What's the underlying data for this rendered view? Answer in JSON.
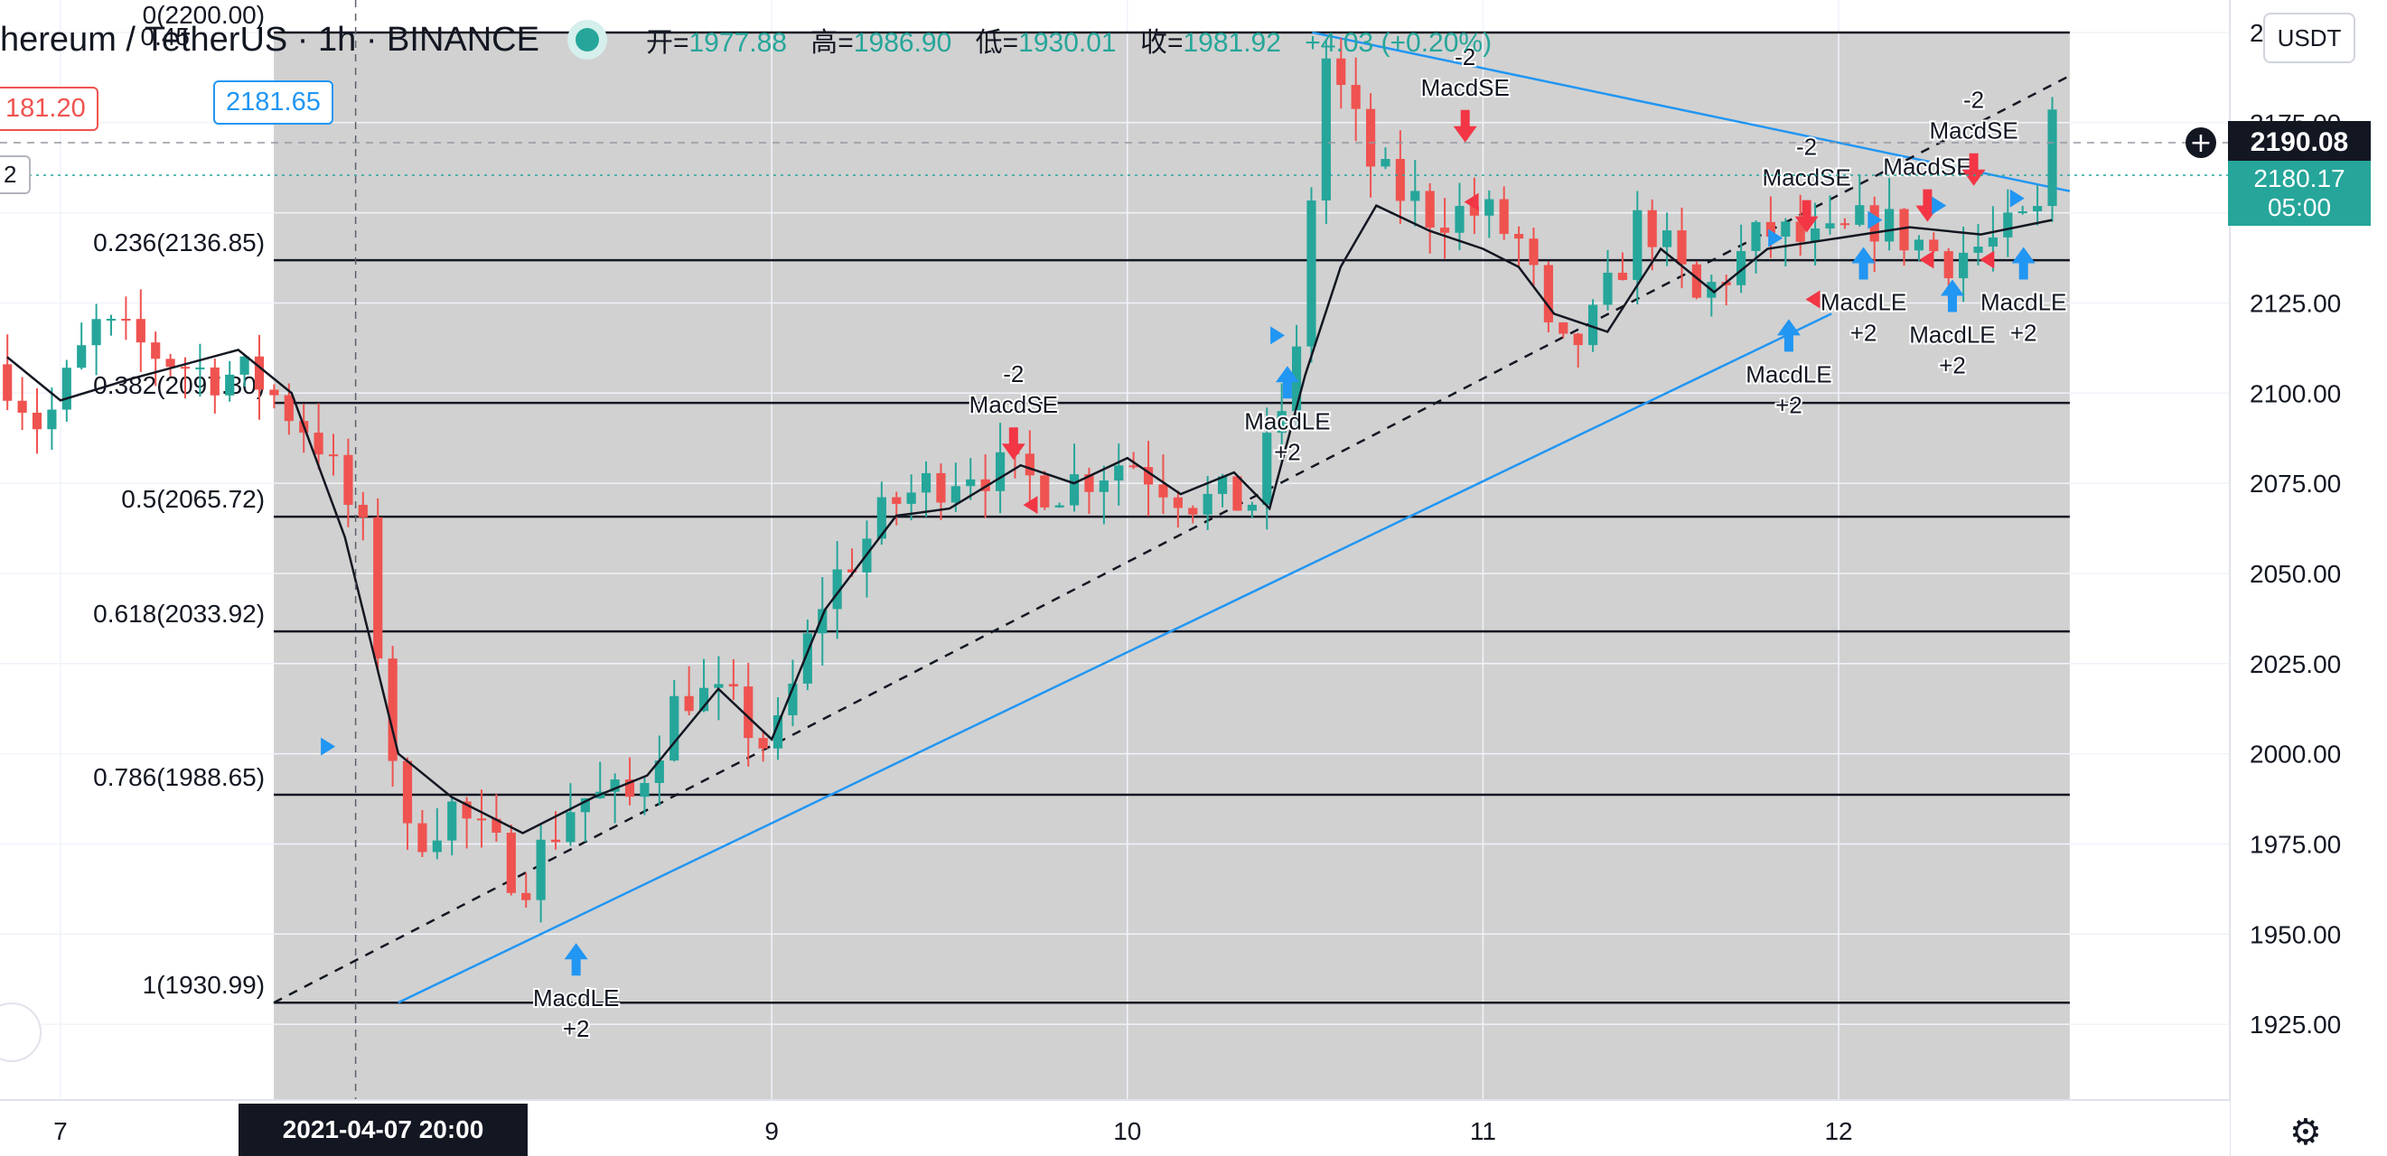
{
  "header": {
    "symbol": "hereum / TetherUS · 1h · BINANCE",
    "ohlc": [
      {
        "label": "开=",
        "value": "1977.88"
      },
      {
        "label": "高=",
        "value": "1986.90"
      },
      {
        "label": "低=",
        "value": "1930.01"
      },
      {
        "label": "收=",
        "value": "1981.92"
      },
      {
        "label": "",
        "value": "+4.03 (+0.20%)"
      }
    ]
  },
  "price_badges": {
    "left_red": "181.20",
    "left_blue": "2181.65",
    "left_small": "2"
  },
  "currency_button": "USDT",
  "crosshair_price": "2190.08",
  "last_price": {
    "price": "2180.17",
    "countdown": "05:00"
  },
  "time_badge": "2021-04-07   20:00",
  "colors": {
    "up": "#26a69a",
    "down": "#ef5350",
    "signal": "#2196f3",
    "short_arrow": "#f23645",
    "zone": "#d1d1d1"
  },
  "chart_data": {
    "type": "candlestick",
    "ylim": [
      1904,
      2209
    ],
    "yticks": [
      "2200.00",
      "2175.00",
      "2150.00",
      "2125.00",
      "2100.00",
      "2075.00",
      "2050.00",
      "2025.00",
      "2000.00",
      "1975.00",
      "1950.00",
      "1925.00"
    ],
    "ytick_values": [
      2200,
      2175,
      2150,
      2125,
      2100,
      2075,
      2050,
      2025,
      2000,
      1975,
      1950,
      1925
    ],
    "xticks": [
      {
        "label": "7",
        "day": 7.0
      },
      {
        "label": "9",
        "day": 9.0
      },
      {
        "label": "10",
        "day": 10.0
      },
      {
        "label": "11",
        "day": 11.0
      },
      {
        "label": "12",
        "day": 12.0
      }
    ],
    "xlim_days": [
      6.83,
      13.1
    ],
    "zone_days": [
      7.6,
      12.65
    ],
    "fib": [
      {
        "label": "0(2200.00)",
        "value": 2200.0
      },
      {
        "label": "0.236(2136.85)",
        "value": 2136.85
      },
      {
        "label": "0.382(2097.30)",
        "value": 2097.3
      },
      {
        "label": "0.5(2065.72)",
        "value": 2065.72
      },
      {
        "label": "0.618(2033.92)",
        "value": 2033.92
      },
      {
        "label": "0.786(1988.65)",
        "value": 1988.65
      },
      {
        "label": "1(1930.99)",
        "value": 1930.99
      }
    ],
    "fib_extra_label": "0.45",
    "trendlines": [
      {
        "style": "solid",
        "color": "#2196f3",
        "points": [
          [
            7.95,
            1931
          ],
          [
            11.98,
            2122
          ]
        ]
      },
      {
        "style": "solid",
        "color": "#2196f3",
        "points": [
          [
            10.52,
            2200
          ],
          [
            12.65,
            2156
          ]
        ]
      },
      {
        "style": "dashed",
        "color": "#131722",
        "points": [
          [
            7.6,
            1931
          ],
          [
            12.65,
            2188
          ]
        ]
      }
    ],
    "ma_path": [
      [
        6.85,
        2110
      ],
      [
        7.0,
        2098
      ],
      [
        7.2,
        2104
      ],
      [
        7.5,
        2112
      ],
      [
        7.65,
        2100
      ],
      [
        7.8,
        2060
      ],
      [
        7.95,
        2000
      ],
      [
        8.1,
        1988
      ],
      [
        8.3,
        1978
      ],
      [
        8.5,
        1988
      ],
      [
        8.65,
        1994
      ],
      [
        8.85,
        2018
      ],
      [
        9.0,
        2004
      ],
      [
        9.15,
        2040
      ],
      [
        9.35,
        2066
      ],
      [
        9.5,
        2068
      ],
      [
        9.7,
        2080
      ],
      [
        9.85,
        2075
      ],
      [
        10.0,
        2082
      ],
      [
        10.15,
        2072
      ],
      [
        10.3,
        2078
      ],
      [
        10.4,
        2068
      ],
      [
        10.5,
        2105
      ],
      [
        10.6,
        2135
      ],
      [
        10.7,
        2152
      ],
      [
        10.85,
        2145
      ],
      [
        11.0,
        2140
      ],
      [
        11.1,
        2135
      ],
      [
        11.2,
        2122
      ],
      [
        11.35,
        2117
      ],
      [
        11.5,
        2140
      ],
      [
        11.65,
        2128
      ],
      [
        11.8,
        2140
      ],
      [
        12.0,
        2143
      ],
      [
        12.2,
        2146
      ],
      [
        12.4,
        2144
      ],
      [
        12.6,
        2148
      ]
    ],
    "candle_anchors": [
      [
        6.83,
        2108
      ],
      [
        6.95,
        2090
      ],
      [
        7.1,
        2118
      ],
      [
        7.25,
        2112
      ],
      [
        7.4,
        2106
      ],
      [
        7.55,
        2104
      ],
      [
        7.72,
        2088
      ],
      [
        7.85,
        2060
      ],
      [
        7.97,
        1975
      ],
      [
        8.1,
        1985
      ],
      [
        8.3,
        1965
      ],
      [
        8.45,
        1988
      ],
      [
        8.6,
        1987
      ],
      [
        8.75,
        2018
      ],
      [
        8.9,
        2012
      ],
      [
        9.0,
        2000
      ],
      [
        9.15,
        2045
      ],
      [
        9.35,
        2070
      ],
      [
        9.55,
        2080
      ],
      [
        9.8,
        2074
      ],
      [
        10.0,
        2082
      ],
      [
        10.2,
        2070
      ],
      [
        10.35,
        2070
      ],
      [
        10.48,
        2110
      ],
      [
        10.55,
        2195
      ],
      [
        10.7,
        2160
      ],
      [
        10.85,
        2150
      ],
      [
        11.0,
        2150
      ],
      [
        11.12,
        2140
      ],
      [
        11.2,
        2108
      ],
      [
        11.32,
        2120
      ],
      [
        11.45,
        2150
      ],
      [
        11.6,
        2125
      ],
      [
        11.8,
        2145
      ],
      [
        11.95,
        2140
      ],
      [
        12.1,
        2148
      ],
      [
        12.3,
        2138
      ],
      [
        12.45,
        2142
      ],
      [
        12.58,
        2150
      ],
      [
        12.6,
        2178
      ]
    ],
    "signals": [
      {
        "kind": "LE",
        "day": 8.45,
        "value": 1942,
        "arrow": "up",
        "text": [
          "MacdLE",
          "+2"
        ]
      },
      {
        "kind": "SE",
        "day": 9.68,
        "value": 2087,
        "arrow": "down",
        "text": [
          "-2",
          "MacdSE"
        ]
      },
      {
        "kind": "LE",
        "day": 10.45,
        "value": 2102,
        "arrow": "up",
        "text": [
          "MacdLE",
          "+2"
        ]
      },
      {
        "kind": "SE",
        "day": 10.95,
        "value": 2175,
        "arrow": "down",
        "text": [
          "-2",
          "MacdSE"
        ]
      },
      {
        "kind": "SE",
        "day": 11.91,
        "value": 2150,
        "arrow": "down",
        "text": [
          "-2",
          "MacdSE"
        ]
      },
      {
        "kind": "LE",
        "day": 11.86,
        "value": 2115,
        "arrow": "up",
        "text": [
          "MacdLE",
          "+2"
        ]
      },
      {
        "kind": "LE",
        "day": 12.07,
        "value": 2135,
        "arrow": "up",
        "text": [
          "MacdLE",
          "+2"
        ]
      },
      {
        "kind": "SE",
        "day": 12.25,
        "value": 2153,
        "arrow": "down",
        "text": [
          "MacdSE"
        ]
      },
      {
        "kind": "SE",
        "day": 12.38,
        "value": 2163,
        "arrow": "down",
        "text": [
          "-2",
          "MacdSE"
        ]
      },
      {
        "kind": "LE",
        "day": 12.32,
        "value": 2126,
        "arrow": "up",
        "text": [
          "MacdLE",
          "+2"
        ]
      },
      {
        "kind": "LE",
        "day": 12.52,
        "value": 2135,
        "arrow": "up",
        "text": [
          "MacdLE",
          "+2"
        ]
      }
    ],
    "markers_right": [
      [
        7.75,
        2002
      ],
      [
        10.42,
        2116
      ],
      [
        11.82,
        2143
      ],
      [
        12.1,
        2148
      ],
      [
        12.28,
        2152
      ],
      [
        12.5,
        2154
      ]
    ],
    "markers_left": [
      [
        9.73,
        2069
      ],
      [
        10.97,
        2153
      ],
      [
        11.93,
        2126
      ],
      [
        12.25,
        2137
      ],
      [
        12.42,
        2137
      ]
    ]
  }
}
